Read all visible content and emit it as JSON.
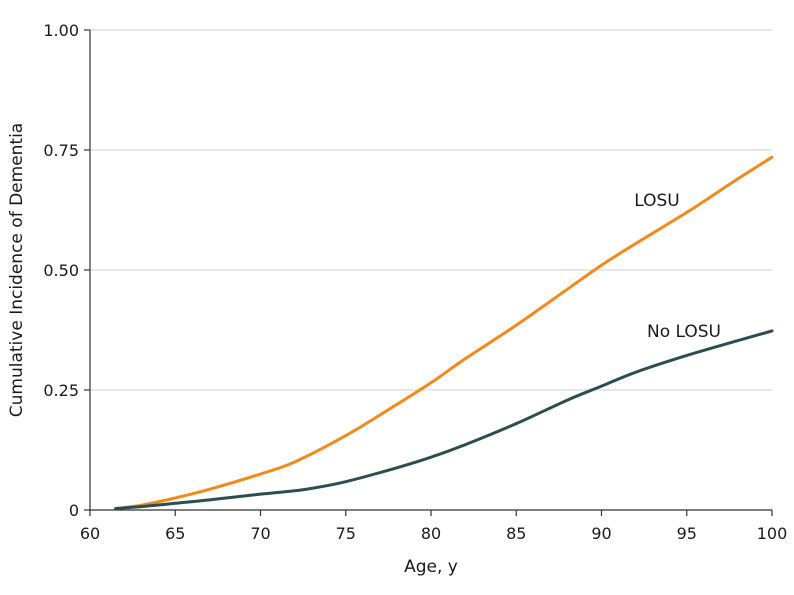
{
  "chart_data": {
    "type": "line",
    "title": "",
    "xlabel": "Age, y",
    "ylabel": "Cumulative Incidence of Dementia",
    "xlim": [
      60,
      100
    ],
    "ylim": [
      0,
      1
    ],
    "x_ticks": [
      60,
      65,
      70,
      75,
      80,
      85,
      90,
      95,
      100
    ],
    "x_tick_labels": [
      "60",
      "65",
      "70",
      "75",
      "80",
      "85",
      "90",
      "95",
      "100"
    ],
    "y_ticks": [
      0,
      0.25,
      0.5,
      0.75,
      1.0
    ],
    "y_tick_labels": [
      "0",
      "0.25",
      "0.50",
      "0.75",
      "1.00"
    ],
    "grid": "horizontal",
    "series": [
      {
        "name": "LOSU",
        "color": "#f28a1b",
        "x": [
          61.5,
          63,
          65,
          67,
          70,
          72,
          75,
          78,
          80,
          82,
          85,
          88,
          90,
          92,
          95,
          98,
          100
        ],
        "y": [
          0.003,
          0.01,
          0.025,
          0.043,
          0.075,
          0.1,
          0.155,
          0.22,
          0.265,
          0.315,
          0.385,
          0.46,
          0.51,
          0.555,
          0.62,
          0.69,
          0.735
        ]
      },
      {
        "name": "No LOSU",
        "color": "#2c4d50",
        "x": [
          61.5,
          63,
          65,
          67,
          70,
          72,
          73,
          75,
          78,
          80,
          82,
          85,
          88,
          90,
          92,
          95,
          98,
          100
        ],
        "y": [
          0.003,
          0.007,
          0.014,
          0.021,
          0.033,
          0.04,
          0.045,
          0.059,
          0.088,
          0.11,
          0.136,
          0.18,
          0.229,
          0.258,
          0.287,
          0.322,
          0.353,
          0.373
        ]
      }
    ]
  }
}
